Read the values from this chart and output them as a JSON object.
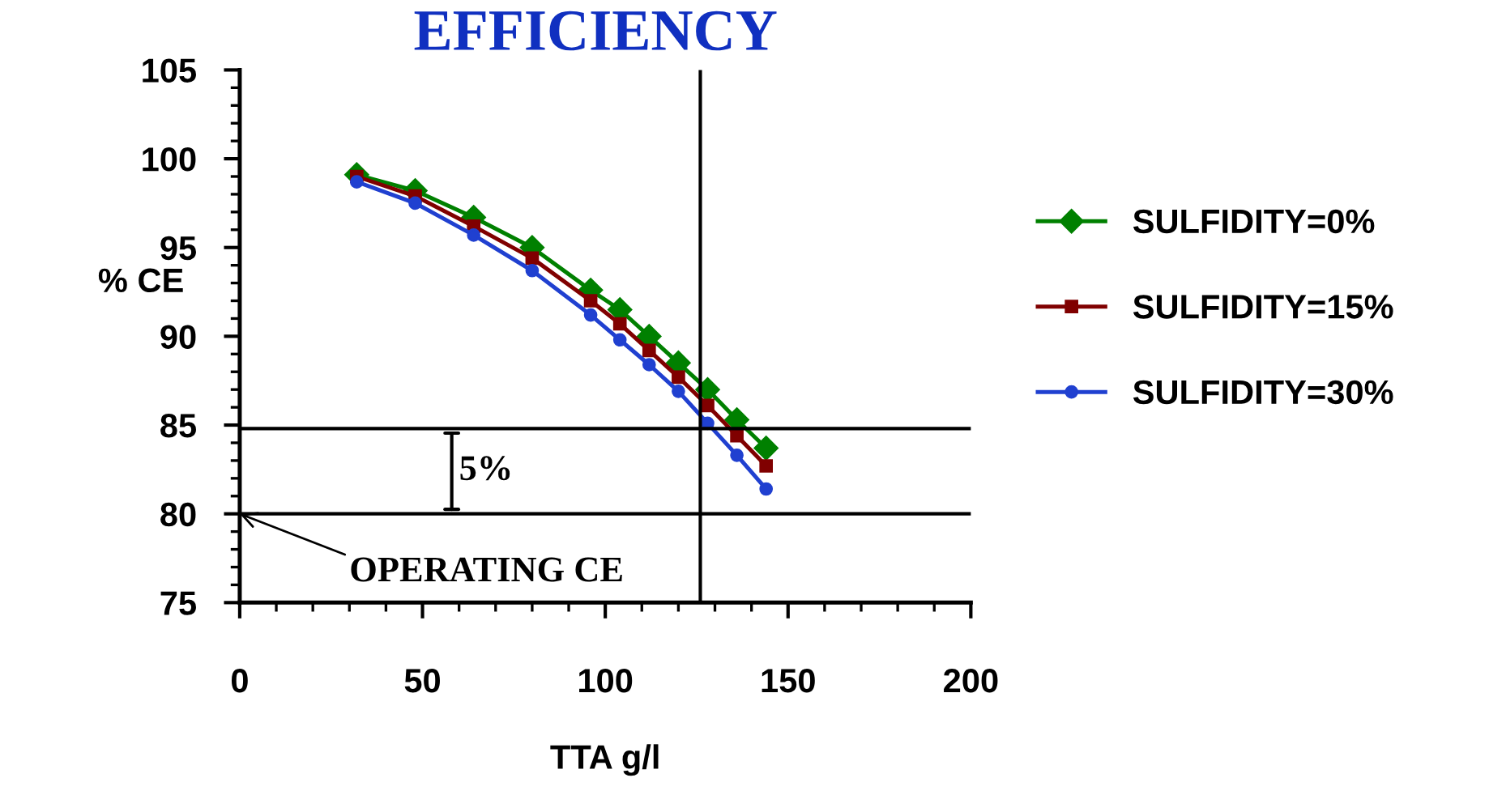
{
  "chart_data": {
    "type": "line",
    "title": "EFFICIENCY",
    "xlabel": "TTA g/l",
    "ylabel": "% CE",
    "x": [
      32,
      48,
      64,
      80,
      96,
      104,
      112,
      120,
      128,
      136,
      144
    ],
    "series": [
      {
        "name": "SULFIDITY=0%",
        "color": "#008000",
        "marker": "diamond",
        "values": [
          99.1,
          98.2,
          96.7,
          95.0,
          92.6,
          91.5,
          90.0,
          88.5,
          87.0,
          85.3,
          83.7
        ]
      },
      {
        "name": "SULFIDITY=15%",
        "color": "#800000",
        "marker": "square",
        "values": [
          99.0,
          97.9,
          96.2,
          94.4,
          92.0,
          90.7,
          89.2,
          87.7,
          86.1,
          84.4,
          82.7
        ]
      },
      {
        "name": "SULFIDITY=30%",
        "color": "#2040d0",
        "marker": "circle",
        "values": [
          98.7,
          97.5,
          95.7,
          93.7,
          91.2,
          89.8,
          88.4,
          86.9,
          85.1,
          83.3,
          81.4
        ]
      }
    ],
    "xlim": [
      0,
      200
    ],
    "xticks": [
      0,
      50,
      100,
      150,
      200
    ],
    "ylim": [
      75,
      105
    ],
    "yticks": [
      75,
      80,
      85,
      90,
      95,
      100,
      105
    ],
    "ref_lines": [
      {
        "axis": "y",
        "value": 84.8,
        "color": "#000000"
      },
      {
        "axis": "y",
        "value": 80,
        "color": "#000000"
      },
      {
        "axis": "x",
        "value": 126,
        "color": "#000000"
      }
    ],
    "annotations": [
      {
        "text": "5%",
        "x": 58,
        "y": 84.8
      },
      {
        "text": "OPERATING CE",
        "x": 0,
        "y": 80
      }
    ],
    "grid": false,
    "legend": "right",
    "line_style": "solid"
  }
}
